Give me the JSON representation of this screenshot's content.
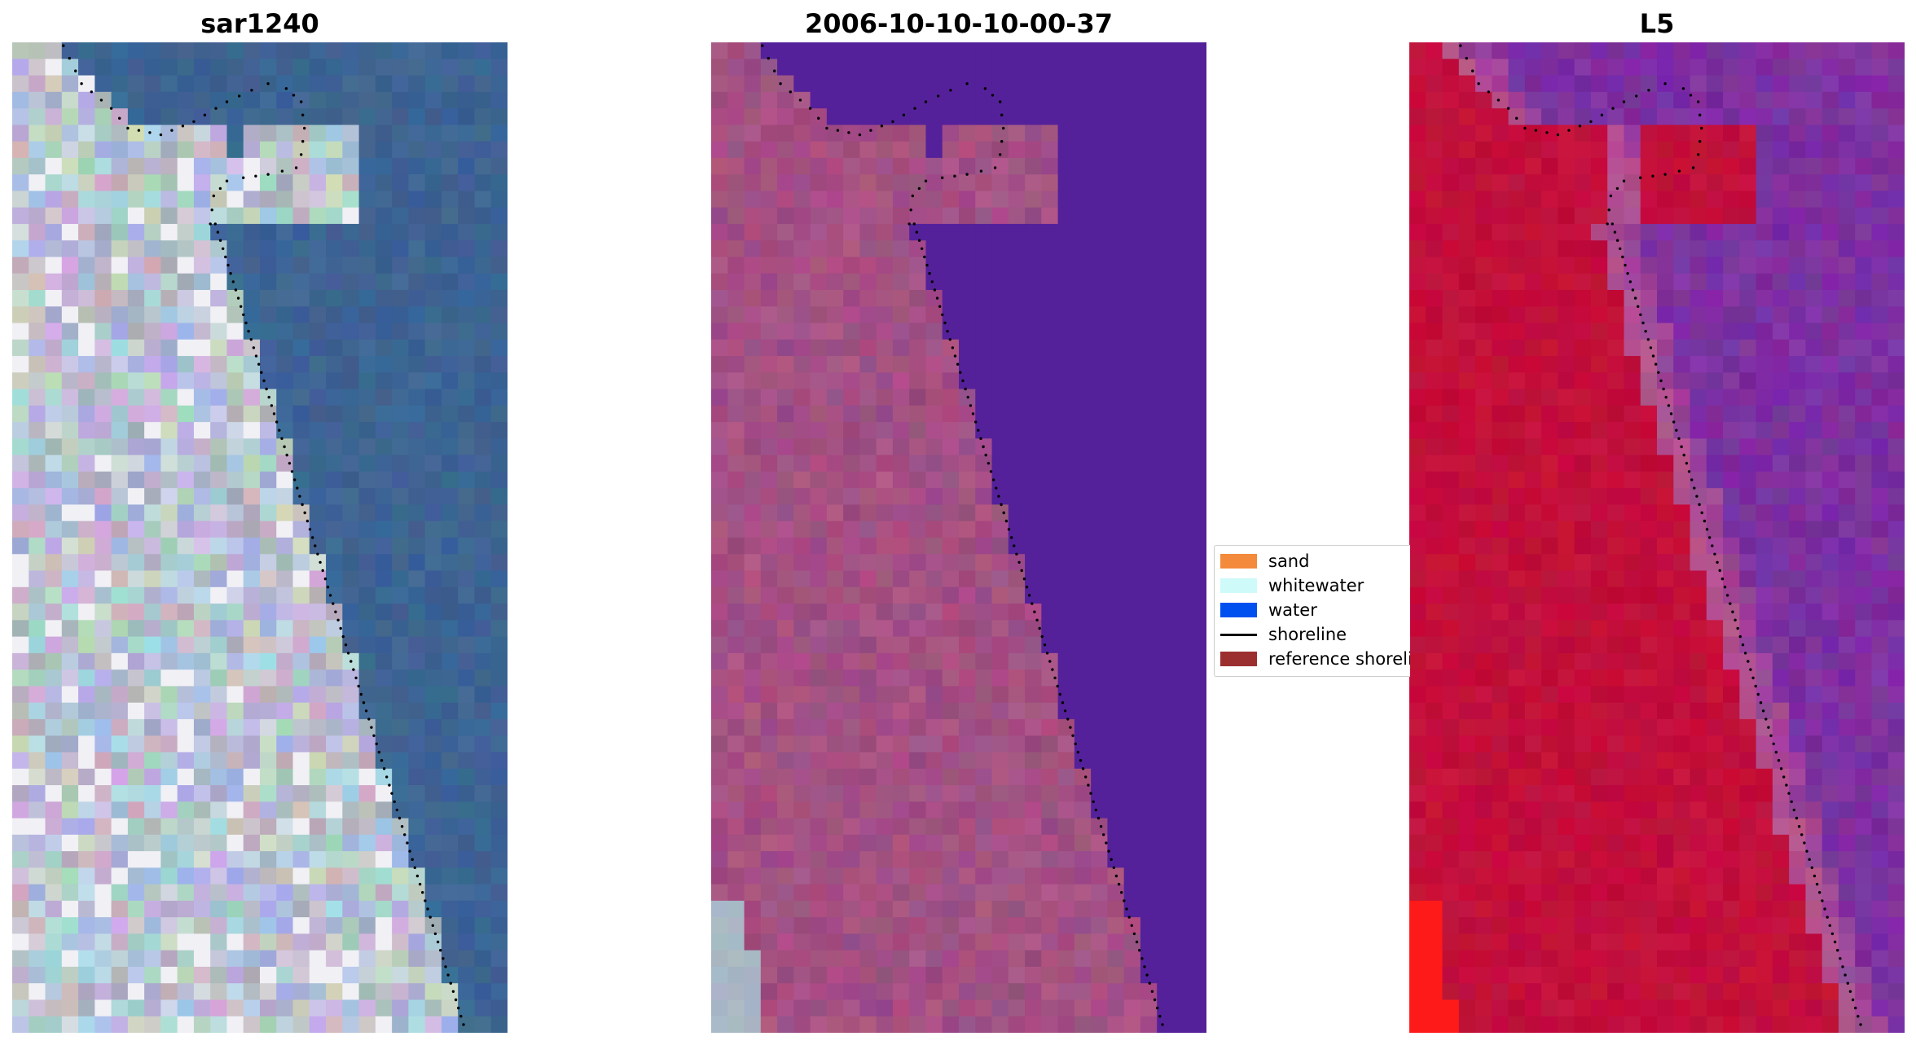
{
  "titles": {
    "panel_1": "sar1240",
    "panel_2": "2006-10-10-10-00-37",
    "panel_3": "L5"
  },
  "legend": {
    "items": [
      {
        "key": "sand",
        "label": "sand",
        "color": "#f38a3c",
        "kind": "patch"
      },
      {
        "key": "whitewater",
        "label": "whitewater",
        "color": "#cffafa",
        "kind": "patch"
      },
      {
        "key": "water",
        "label": "water",
        "color": "#0050f0",
        "kind": "patch"
      },
      {
        "key": "shoreline",
        "label": "shoreline",
        "color": "#000000",
        "kind": "line"
      },
      {
        "key": "reference",
        "label": "reference shoreline",
        "color": "#9b2f2f",
        "kind": "patch"
      }
    ]
  },
  "colors": {
    "rgb_water": "#3e6393",
    "rgb_land": "#b9c2cf",
    "class_water": "#55219a",
    "class_land": "#9a4d82",
    "class_land_bright": "#b85886",
    "class_sand_patch": "#a9b7c5",
    "ndwi_land": "#c20f3b",
    "ndwi_water": "#7a2ea2",
    "ndwi_edge": "#b2528f",
    "ndwi_hot": "#ff1a1a",
    "shoreline_dots": "#000000"
  }
}
